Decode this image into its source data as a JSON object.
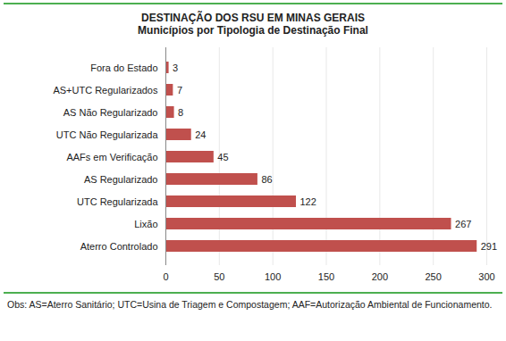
{
  "chart_data": {
    "type": "bar",
    "orientation": "horizontal",
    "title": "DESTINAÇÃO DOS RSU EM MINAS GERAIS",
    "subtitle": "Municípios por Tipologia de Destinação Final",
    "categories": [
      "Fora do Estado",
      "AS+UTC Regularizados",
      "AS Não Regularizado",
      "UTC Não Regularizada",
      "AAFs em Verificação",
      "AS Regularizado",
      "UTC Regularizada",
      "Lixão",
      "Aterro Controlado"
    ],
    "values": [
      3,
      7,
      8,
      24,
      45,
      86,
      122,
      267,
      291
    ],
    "color": "#c0504d",
    "xlim": [
      0,
      300
    ],
    "xticks": [
      0,
      50,
      100,
      150,
      200,
      250,
      300
    ],
    "grid": true,
    "data_labels": true,
    "annotations": [
      "Obs: AS=Aterro Sanitário; UTC=Usina de Triagem e Compostagem; AAF=Autorização Ambiental de Funcionamento."
    ]
  }
}
